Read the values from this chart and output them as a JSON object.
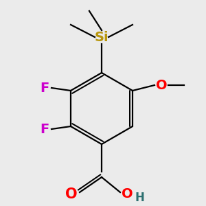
{
  "background_color": "#ebebeb",
  "bond_color": "#000000",
  "bond_width": 1.6,
  "colors": {
    "F": "#cc00cc",
    "O": "#ff0000",
    "Si": "#b8960c",
    "C": "#000000",
    "H": "#2d7070"
  },
  "font_size": 14,
  "font_size_small": 12
}
